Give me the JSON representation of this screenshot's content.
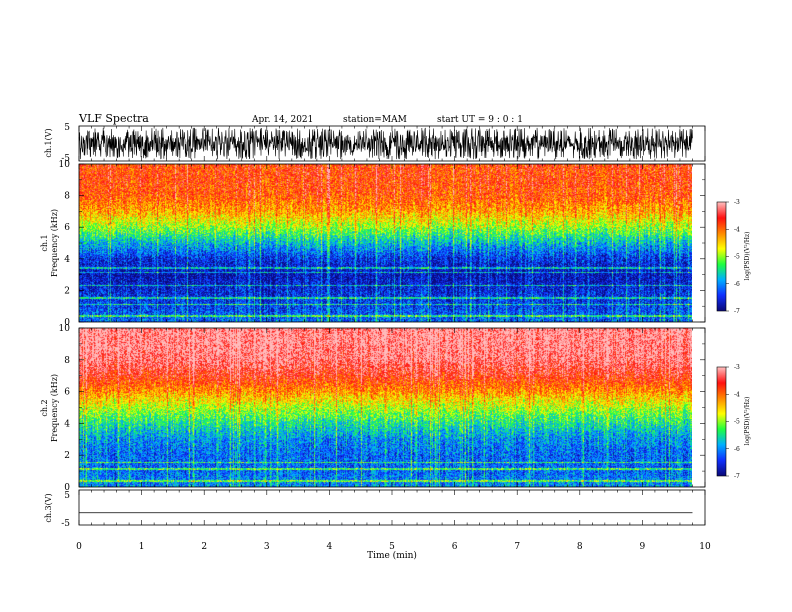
{
  "header": {
    "title": "VLF Spectra",
    "date": "Apr. 14, 2021",
    "station": "station=MAM",
    "start": "start  UT =  9 : 0 : 1"
  },
  "colors": {
    "spectrum": [
      "#0a0a7a",
      "#1030ff",
      "#00b0ff",
      "#20ff40",
      "#ffff00",
      "#ff8800",
      "#ff1010",
      "#ffbcbc"
    ],
    "waveform": "#000000"
  },
  "chart_data": [
    {
      "type": "line",
      "name": "ch1-waveform",
      "ylabel": "ch.1(V)",
      "yticks": [
        "5",
        "-5"
      ],
      "ylim": [
        -5,
        5
      ],
      "description_values": {
        "x_range_min": [
          0,
          9.8
        ],
        "amplitude_range_V": [
          -4.5,
          4.5
        ]
      }
    },
    {
      "type": "heatmap",
      "name": "ch1-spectrogram",
      "ylabel_line1": "ch.1",
      "ylabel_line2": "Frequency  (kHz)",
      "yticks": [
        "0",
        "2",
        "4",
        "6",
        "8",
        "10"
      ],
      "ylim": [
        0,
        10
      ],
      "xlim": [
        0,
        9.8
      ],
      "colorbar": {
        "label": "log(PSD)(V²/Hz)",
        "ticks": [
          "-3",
          "-4",
          "-5",
          "-6",
          "-7"
        ],
        "range": [
          -7,
          -3
        ]
      },
      "profile": {
        "freq_kHz": [
          0,
          1,
          2,
          3,
          4,
          5,
          6,
          7,
          8,
          9,
          10
        ],
        "log_psd": [
          -6.2,
          -6.4,
          -6.6,
          -6.8,
          -6.5,
          -5.8,
          -5.0,
          -4.3,
          -3.9,
          -3.8,
          -3.8
        ]
      }
    },
    {
      "type": "heatmap",
      "name": "ch2-spectrogram",
      "ylabel_line1": "ch.2",
      "ylabel_line2": "Frequency  (kHz)",
      "yticks": [
        "0",
        "2",
        "4",
        "6",
        "8",
        "10"
      ],
      "ylim": [
        0,
        10
      ],
      "xlim": [
        0,
        9.8
      ],
      "colorbar": {
        "label": "log(PSD)(V²/Hz)",
        "ticks": [
          "-3",
          "-4",
          "-5",
          "-6",
          "-7"
        ],
        "range": [
          -7,
          -3
        ]
      },
      "profile": {
        "freq_kHz": [
          0,
          1,
          2,
          3,
          4,
          5,
          6,
          7,
          8,
          9,
          10
        ],
        "log_psd": [
          -6.0,
          -6.2,
          -6.2,
          -6.0,
          -5.5,
          -4.9,
          -4.2,
          -3.6,
          -3.2,
          -3.1,
          -3.1
        ]
      }
    },
    {
      "type": "line",
      "name": "ch3-waveform",
      "ylabel": "ch.3(V)",
      "yticks": [
        "5",
        "-5"
      ],
      "ylim": [
        -5,
        5
      ],
      "values_V": {
        "x": [
          0,
          9.8
        ],
        "y": [
          -1.5,
          -1.5
        ]
      }
    }
  ],
  "xaxis": {
    "label": "Time  (min)",
    "ticks": [
      "0",
      "1",
      "2",
      "3",
      "4",
      "5",
      "6",
      "7",
      "8",
      "9",
      "10"
    ],
    "range": [
      0,
      10
    ]
  }
}
